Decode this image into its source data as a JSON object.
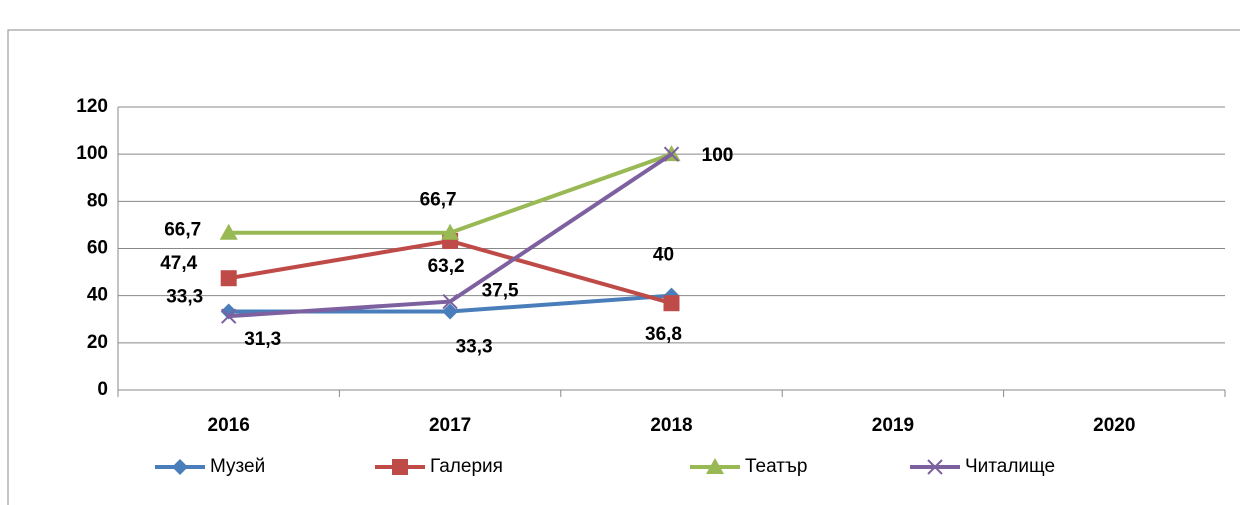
{
  "chart_data": {
    "type": "line",
    "categories": [
      "2016",
      "2017",
      "2018",
      "2019",
      "2020"
    ],
    "series": [
      {
        "name": "Музей",
        "color": "#4a7ebb",
        "marker": "diamond",
        "values": [
          33.3,
          33.3,
          40,
          null,
          null
        ],
        "value_labels": [
          "33,3",
          "33,3",
          "40",
          null,
          null
        ]
      },
      {
        "name": "Галерия",
        "color": "#be4b48",
        "marker": "square",
        "values": [
          47.4,
          63.2,
          36.8,
          null,
          null
        ],
        "value_labels": [
          "47,4",
          "63,2",
          "36,8",
          null,
          null
        ]
      },
      {
        "name": "Театър",
        "color": "#98b954",
        "marker": "triangle",
        "values": [
          66.7,
          66.7,
          100,
          null,
          null
        ],
        "value_labels": [
          "66,7",
          "66,7",
          "100",
          null,
          null
        ]
      },
      {
        "name": "Читалище",
        "color": "#7d60a0",
        "marker": "x",
        "values": [
          31.3,
          37.5,
          100,
          null,
          null
        ],
        "value_labels": [
          "31,3",
          "37,5",
          "100",
          null,
          null
        ]
      }
    ],
    "ylim": [
      0,
      120
    ],
    "yticks": [
      0,
      20,
      40,
      60,
      80,
      100,
      120
    ],
    "grid": true,
    "legend": "bottom"
  }
}
